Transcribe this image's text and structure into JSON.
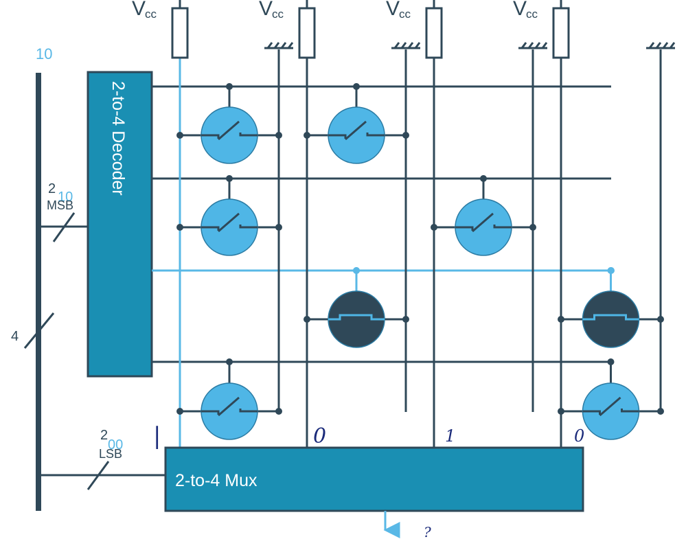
{
  "colors": {
    "dark": "#2f4858",
    "highlight": "#59b8e6",
    "box": "#1a8fb3",
    "box_border": "#2f4858",
    "transistor_on": "#4fb6e6",
    "transistor_off": "#2f4858",
    "handwriting": "#1a2a7a"
  },
  "supply": {
    "label": "V",
    "subscript": "cc"
  },
  "address_bus": {
    "value": "10",
    "width": "4",
    "msb": {
      "width": "2",
      "overlay": "10",
      "label": "MSB"
    },
    "lsb": {
      "width": "2",
      "overlay": "00",
      "label": "LSB"
    }
  },
  "decoder": {
    "label": "2-to-4 Decoder"
  },
  "mux": {
    "label": "2-to-4 Mux",
    "output": "?"
  },
  "column_annotations": [
    "|",
    "0",
    "1",
    "0"
  ],
  "cells": [
    {
      "row": 0,
      "col": 0,
      "state": "on",
      "icon": "switch-icon"
    },
    {
      "row": 0,
      "col": 1,
      "state": "on",
      "icon": "switch-icon"
    },
    {
      "row": 1,
      "col": 0,
      "state": "on",
      "icon": "switch-icon"
    },
    {
      "row": 1,
      "col": 2,
      "state": "on",
      "icon": "switch-icon"
    },
    {
      "row": 2,
      "col": 1,
      "state": "off",
      "icon": "pulse-icon"
    },
    {
      "row": 2,
      "col": 3,
      "state": "off",
      "icon": "pulse-icon"
    },
    {
      "row": 3,
      "col": 0,
      "state": "on",
      "icon": "switch-icon"
    },
    {
      "row": 3,
      "col": 3,
      "state": "on",
      "icon": "switch-icon"
    }
  ]
}
